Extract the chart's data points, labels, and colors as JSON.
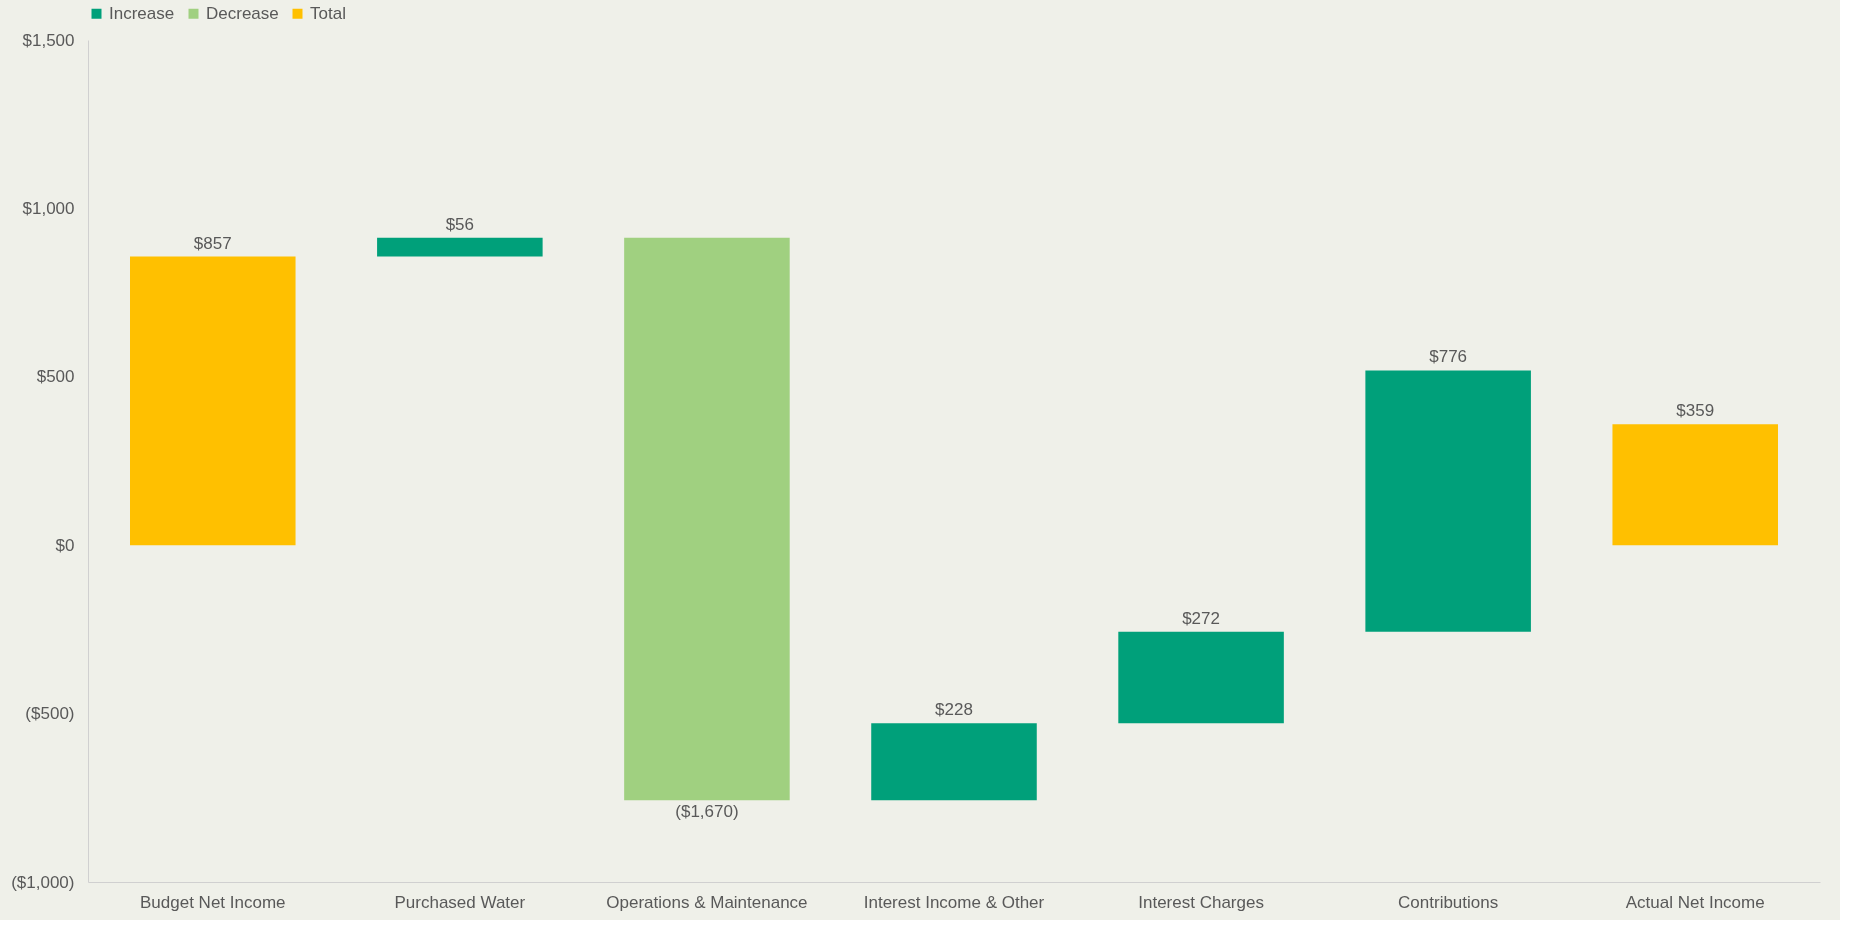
{
  "chart_data": {
    "type": "bar",
    "categories": [
      "Budget Net Income",
      "Purchased Water",
      "Operations & Maintenance",
      "Interest Income & Other",
      "Interest Charges",
      "Contributions",
      "Actual Net Income"
    ],
    "series": [
      {
        "name": "Increase",
        "color": "#00a07a",
        "values": [
          null,
          56,
          null,
          228,
          272,
          776,
          null
        ],
        "base": [
          null,
          857,
          null,
          -757,
          -529,
          -257,
          null
        ],
        "value_labels": [
          null,
          "$56",
          null,
          "$228",
          "$272",
          "$776",
          null
        ]
      },
      {
        "name": "Decrease",
        "color": "#a0d080",
        "values": [
          null,
          null,
          -1670,
          null,
          null,
          null,
          null
        ],
        "base": [
          null,
          null,
          913,
          null,
          null,
          null,
          null
        ],
        "value_labels": [
          null,
          null,
          "($1,670)",
          null,
          null,
          null,
          null
        ]
      },
      {
        "name": "Total",
        "color": "#ffc000",
        "values": [
          857,
          null,
          null,
          null,
          null,
          null,
          359
        ],
        "base": [
          0,
          null,
          null,
          null,
          null,
          null,
          0
        ],
        "value_labels": [
          "$857",
          null,
          null,
          null,
          null,
          null,
          "$359"
        ]
      }
    ],
    "ylim": [
      -1000,
      1500
    ],
    "yticks": [
      {
        "value": -1000,
        "label": "($1,000)"
      },
      {
        "value": -500,
        "label": "($500)"
      },
      {
        "value": 0,
        "label": "$0"
      },
      {
        "value": 500,
        "label": "$500"
      },
      {
        "value": 1000,
        "label": "$1,000"
      },
      {
        "value": 1500,
        "label": "$1,500"
      }
    ],
    "grid": false,
    "legend": "top"
  }
}
